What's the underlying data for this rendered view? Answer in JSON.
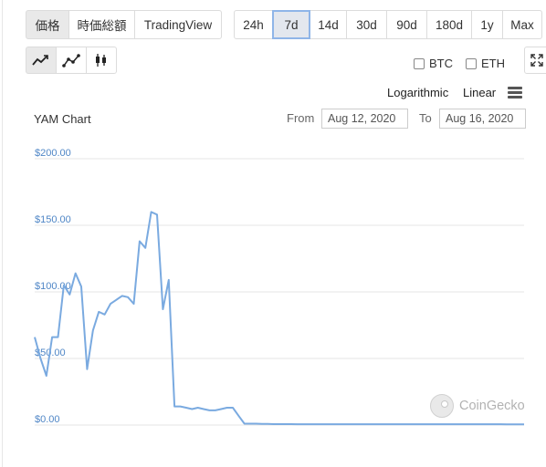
{
  "view_tabs": [
    "価格",
    "時価総額",
    "TradingView"
  ],
  "range_tabs": [
    "24h",
    "7d",
    "14d",
    "30d",
    "90d",
    "180d",
    "1y",
    "Max"
  ],
  "active_range": "7d",
  "chart_type_icons": [
    "line-chart-icon",
    "line-with-markers-icon",
    "candlestick-icon"
  ],
  "compare": {
    "btc_label": "BTC",
    "eth_label": "ETH"
  },
  "scale": {
    "log_label": "Logarithmic",
    "linear_label": "Linear"
  },
  "chart_title": "YAM Chart",
  "range": {
    "from_label": "From",
    "from_date": "Aug 12, 2020",
    "to_label": "To",
    "to_date": "Aug 16, 2020"
  },
  "watermark": "CoinGecko",
  "colors": {
    "line": "#7aaae0",
    "axis_text": "#4f86c6",
    "grid": "#e6e6e6",
    "active_range_border": "#8fb5e8"
  },
  "chart_data": {
    "type": "line",
    "title": "YAM Chart",
    "x_range": [
      "Aug 12, 2020",
      "Aug 16, 2020"
    ],
    "ylim": [
      0,
      200
    ],
    "y_ticks": [
      "$0.00",
      "$50.00",
      "$100.00",
      "$150.00",
      "$200.00"
    ],
    "grid": true,
    "series": [
      {
        "values": [
          66,
          50,
          37,
          66,
          66,
          105,
          98,
          114,
          104,
          42,
          71,
          85,
          83,
          91,
          94,
          97,
          96,
          91,
          138,
          133,
          160,
          158,
          87,
          109,
          14,
          14,
          13,
          12,
          13,
          12,
          11,
          11,
          12,
          13,
          13,
          7,
          1,
          1,
          1,
          0.8,
          0.8,
          0.7,
          0.7,
          0.7,
          0.7,
          0.6,
          0.6,
          0.6,
          0.6,
          0.6,
          0.6,
          0.6,
          0.6,
          0.6,
          0.6,
          0.6,
          0.6,
          0.6,
          0.6,
          0.6,
          0.6,
          0.6,
          0.6,
          0.6,
          0.6,
          0.6,
          0.6,
          0.6,
          0.6,
          0.6,
          0.6,
          0.6,
          0.6,
          0.6,
          0.6,
          0.6,
          0.6,
          0.6,
          0.6,
          0.6,
          0.6,
          0.5,
          0.5,
          0.5,
          0.5
        ]
      }
    ]
  }
}
